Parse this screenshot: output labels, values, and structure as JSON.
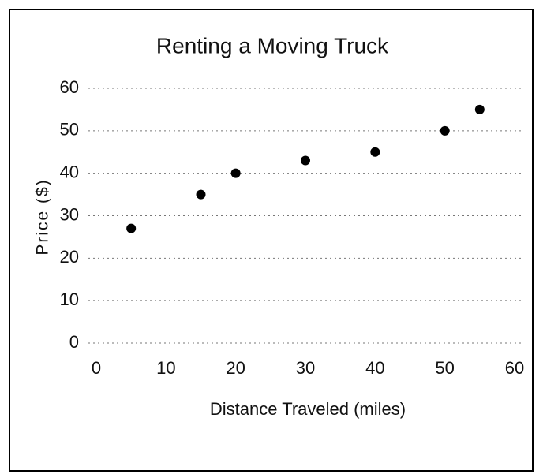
{
  "chart_data": {
    "type": "scatter",
    "title": "Renting a Moving Truck",
    "x_label": "Distance Traveled (miles)",
    "y_label": "Price ($)",
    "series": [
      {
        "name": null,
        "color": "#000000",
        "x": [
          5,
          15,
          20,
          30,
          40,
          50,
          55
        ],
        "values": [
          27,
          35,
          40,
          43,
          45,
          50,
          55
        ]
      }
    ],
    "xlim": [
      0,
      60
    ],
    "xticks": [
      0,
      10,
      20,
      30,
      40,
      50,
      60
    ],
    "ylim": [
      0,
      60
    ],
    "yticks": [
      0,
      10,
      20,
      30,
      40,
      50,
      60
    ],
    "grid": true
  }
}
